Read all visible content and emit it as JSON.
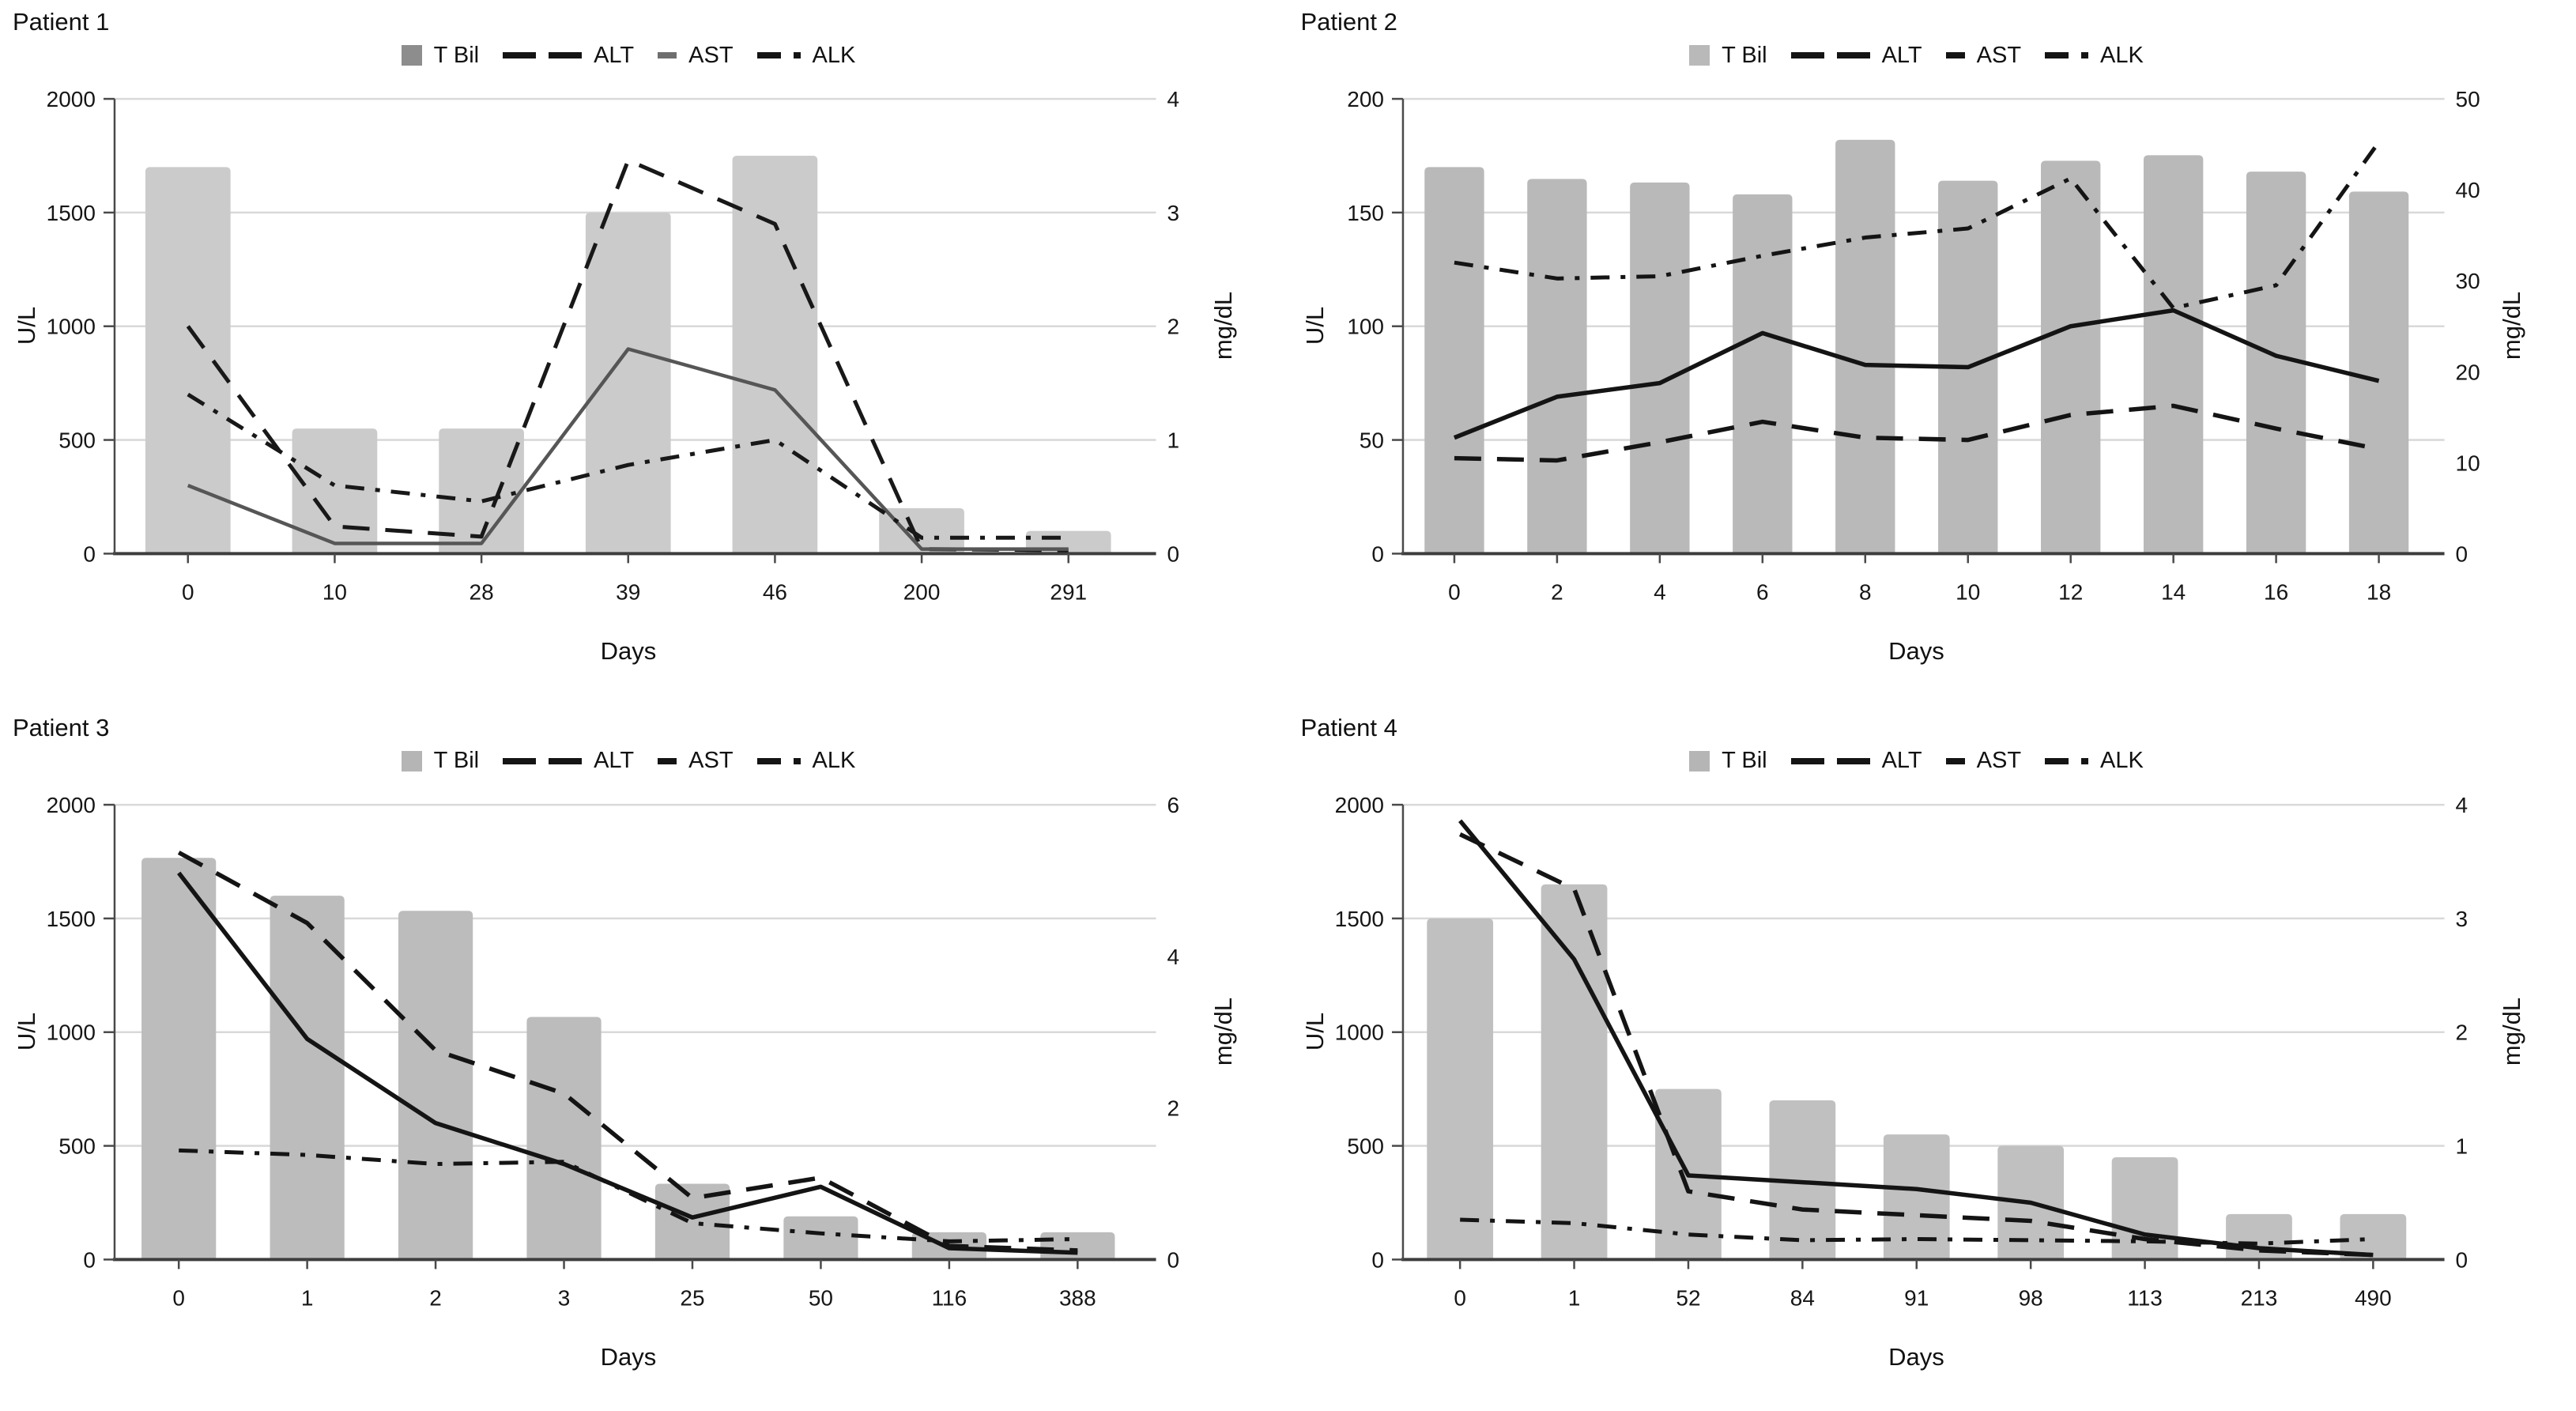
{
  "figure": {
    "background": "#ffffff",
    "text_color": "#111111",
    "grid_color": "#d9d9d9",
    "axis_color": "#3d3d3d"
  },
  "chart_data": [
    {
      "type": "bar+line",
      "title": "Patient 1",
      "x_axis_label": "Days",
      "x": [
        "0",
        "10",
        "28",
        "39",
        "46",
        "200",
        "291"
      ],
      "left_axis": {
        "label": "U/L",
        "min": 0,
        "max": 2000,
        "ticks": [
          0,
          500,
          1000,
          1500,
          2000
        ]
      },
      "right_axis": {
        "label": "mg/dL",
        "min": 0,
        "max": 4,
        "ticks": [
          0,
          1,
          2,
          3,
          4
        ]
      },
      "bar_series": {
        "name": "T Bil",
        "axis": "right",
        "unit": "mg/dL",
        "color": "#cbcbcb",
        "values": [
          3.4,
          1.1,
          1.1,
          3.0,
          3.5,
          0.4,
          0.2
        ]
      },
      "line_series": [
        {
          "name": "ALT",
          "axis": "left",
          "unit": "U/L",
          "style": "long-dash",
          "color": "#181818",
          "width": 5,
          "values": [
            1000,
            120,
            75,
            1730,
            1450,
            20,
            15
          ]
        },
        {
          "name": "AST",
          "axis": "left",
          "unit": "U/L",
          "style": "solid",
          "color": "#565656",
          "width": 4.5,
          "values": [
            300,
            45,
            45,
            900,
            720,
            20,
            20
          ]
        },
        {
          "name": "ALK",
          "axis": "left",
          "unit": "U/L",
          "style": "dash-dot",
          "color": "#181818",
          "width": 5,
          "values": [
            700,
            300,
            230,
            390,
            500,
            70,
            70
          ]
        }
      ],
      "legend": [
        {
          "label": "T Bil",
          "marker": "square",
          "color": "#8d8d8d"
        },
        {
          "label": "ALT",
          "marker": "double-dash",
          "color": "#141414"
        },
        {
          "label": "AST",
          "marker": "dash",
          "color": "#6e6e6e"
        },
        {
          "label": "ALK",
          "marker": "dash-dot",
          "color": "#141414"
        }
      ]
    },
    {
      "type": "bar+line",
      "title": "Patient 2",
      "x_axis_label": "Days",
      "x": [
        "0",
        "2",
        "4",
        "6",
        "8",
        "10",
        "12",
        "14",
        "16",
        "18"
      ],
      "left_axis": {
        "label": "U/L",
        "min": 0,
        "max": 200,
        "ticks": [
          0,
          50,
          100,
          150,
          200
        ]
      },
      "right_axis": {
        "label": "mg/dL",
        "min": 0,
        "max": 50,
        "ticks": [
          0,
          10,
          20,
          30,
          40,
          50
        ]
      },
      "bar_series": {
        "name": "T Bil",
        "axis": "right",
        "unit": "mg/dL",
        "color": "#b9b9b9",
        "values": [
          42.5,
          41.2,
          40.8,
          39.5,
          45.5,
          41.0,
          43.2,
          43.8,
          42.0,
          39.8
        ]
      },
      "line_series": [
        {
          "name": "ALT",
          "axis": "left",
          "unit": "U/L",
          "style": "solid",
          "color": "#141414",
          "width": 5.5,
          "values": [
            51,
            69,
            75,
            97,
            83,
            82,
            100,
            107,
            87,
            76
          ]
        },
        {
          "name": "AST",
          "axis": "left",
          "unit": "U/L",
          "style": "long-dash",
          "color": "#141414",
          "width": 5.5,
          "values": [
            42,
            41,
            49,
            58,
            51,
            50,
            61,
            65,
            55,
            46
          ]
        },
        {
          "name": "ALK",
          "axis": "left",
          "unit": "U/L",
          "style": "dash-dot",
          "color": "#141414",
          "width": 5,
          "values": [
            128,
            121,
            122,
            131,
            139,
            143,
            165,
            108,
            118,
            181
          ]
        }
      ],
      "legend": [
        {
          "label": "T Bil",
          "marker": "square",
          "color": "#b9b9b9"
        },
        {
          "label": "ALT",
          "marker": "double-dash",
          "color": "#141414"
        },
        {
          "label": "AST",
          "marker": "dash",
          "color": "#141414"
        },
        {
          "label": "ALK",
          "marker": "dash-dot",
          "color": "#141414"
        }
      ]
    },
    {
      "type": "bar+line",
      "title": "Patient 3",
      "x_axis_label": "Days",
      "x": [
        "0",
        "1",
        "2",
        "3",
        "25",
        "50",
        "116",
        "388"
      ],
      "left_axis": {
        "label": "U/L",
        "min": 0,
        "max": 2000,
        "ticks": [
          0,
          500,
          1000,
          1500,
          2000
        ]
      },
      "right_axis": {
        "label": "mg/dL",
        "min": 0,
        "max": 6,
        "ticks": [
          0,
          2,
          4,
          6
        ]
      },
      "bar_series": {
        "name": "T Bil",
        "axis": "right",
        "unit": "mg/dL",
        "color": "#bcbcbc",
        "values": [
          5.3,
          4.8,
          4.6,
          3.2,
          1.0,
          0.57,
          0.36,
          0.36
        ]
      },
      "line_series": [
        {
          "name": "ALT",
          "axis": "left",
          "unit": "U/L",
          "style": "solid",
          "color": "#141414",
          "width": 5.5,
          "values": [
            1700,
            970,
            600,
            420,
            185,
            320,
            50,
            30
          ]
        },
        {
          "name": "AST",
          "axis": "left",
          "unit": "U/L",
          "style": "long-dash",
          "color": "#141414",
          "width": 5.5,
          "values": [
            1790,
            1480,
            920,
            730,
            270,
            360,
            60,
            40
          ]
        },
        {
          "name": "ALK",
          "axis": "left",
          "unit": "U/L",
          "style": "dash-dot",
          "color": "#141414",
          "width": 5,
          "values": [
            480,
            460,
            420,
            430,
            160,
            115,
            80,
            90
          ]
        }
      ],
      "legend": [
        {
          "label": "T Bil",
          "marker": "square",
          "color": "#b5b5b5"
        },
        {
          "label": "ALT",
          "marker": "double-dash",
          "color": "#141414"
        },
        {
          "label": "AST",
          "marker": "dash",
          "color": "#141414"
        },
        {
          "label": "ALK",
          "marker": "dash-dot",
          "color": "#141414"
        }
      ]
    },
    {
      "type": "bar+line",
      "title": "Patient 4",
      "x_axis_label": "Days",
      "x": [
        "0",
        "1",
        "52",
        "84",
        "91",
        "98",
        "113",
        "213",
        "490"
      ],
      "left_axis": {
        "label": "U/L",
        "min": 0,
        "max": 2000,
        "ticks": [
          0,
          500,
          1000,
          1500,
          2000
        ]
      },
      "right_axis": {
        "label": "mg/dL",
        "min": 0,
        "max": 4,
        "ticks": [
          0,
          1,
          2,
          3,
          4
        ]
      },
      "bar_series": {
        "name": "T Bil",
        "axis": "right",
        "unit": "mg/dL",
        "color": "#c0c0c0",
        "values": [
          3.0,
          3.3,
          1.5,
          1.4,
          1.1,
          1.0,
          0.9,
          0.4,
          0.4
        ]
      },
      "line_series": [
        {
          "name": "ALT",
          "axis": "left",
          "unit": "U/L",
          "style": "solid",
          "color": "#141414",
          "width": 5.5,
          "values": [
            1930,
            1320,
            370,
            340,
            310,
            250,
            110,
            50,
            20
          ]
        },
        {
          "name": "AST",
          "axis": "left",
          "unit": "U/L",
          "style": "long-dash",
          "color": "#141414",
          "width": 5.5,
          "values": [
            1870,
            1630,
            300,
            220,
            195,
            170,
            90,
            40,
            20
          ]
        },
        {
          "name": "ALK",
          "axis": "left",
          "unit": "U/L",
          "style": "dash-dot",
          "color": "#141414",
          "width": 5,
          "values": [
            175,
            160,
            110,
            85,
            90,
            85,
            80,
            70,
            90
          ]
        }
      ],
      "legend": [
        {
          "label": "T Bil",
          "marker": "square",
          "color": "#b5b5b5"
        },
        {
          "label": "ALT",
          "marker": "double-dash",
          "color": "#141414"
        },
        {
          "label": "AST",
          "marker": "dash",
          "color": "#141414"
        },
        {
          "label": "ALK",
          "marker": "dash-dot",
          "color": "#141414"
        }
      ]
    }
  ]
}
